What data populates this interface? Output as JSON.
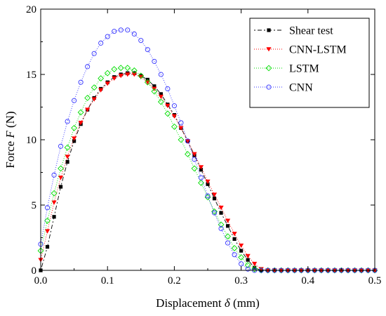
{
  "chart_data": {
    "type": "line",
    "title": "",
    "xlabel_prefix": "Displacement ",
    "xlabel_symbol": "δ",
    "xlabel_suffix": " (mm)",
    "ylabel_prefix": "Force ",
    "ylabel_symbol": "F",
    "ylabel_suffix": " (N)",
    "xlim": [
      0,
      0.5
    ],
    "ylim": [
      0,
      20
    ],
    "xticks": [
      "0.0",
      "0.1",
      "0.2",
      "0.3",
      "0.4",
      "0.5"
    ],
    "yticks": [
      "0",
      "5",
      "10",
      "15",
      "20"
    ],
    "grid": false,
    "legend_position": "top-right",
    "x": [
      0,
      0.01,
      0.02,
      0.03,
      0.04,
      0.05,
      0.06,
      0.07,
      0.08,
      0.09,
      0.1,
      0.11,
      0.12,
      0.13,
      0.14,
      0.15,
      0.16,
      0.17,
      0.18,
      0.19,
      0.2,
      0.21,
      0.22,
      0.23,
      0.24,
      0.25,
      0.26,
      0.27,
      0.28,
      0.29,
      0.3,
      0.31,
      0.32,
      0.33,
      0.34,
      0.35,
      0.36,
      0.37,
      0.38,
      0.39,
      0.4,
      0.41,
      0.42,
      0.43,
      0.44,
      0.45,
      0.46,
      0.47,
      0.48,
      0.49,
      0.5
    ],
    "series": [
      {
        "name": "Shear test",
        "color": "#000000",
        "marker": "square",
        "dash": "2,3,6,3",
        "values": [
          0,
          1.8,
          4.1,
          6.4,
          8.3,
          9.9,
          11.2,
          12.3,
          13.2,
          13.9,
          14.4,
          14.8,
          15.0,
          15.1,
          15.1,
          14.9,
          14.6,
          14.1,
          13.5,
          12.7,
          11.9,
          10.9,
          9.9,
          8.8,
          7.7,
          6.6,
          5.5,
          4.4,
          3.4,
          2.4,
          1.5,
          0.8,
          0.2,
          0,
          0,
          0,
          0,
          0,
          0,
          0,
          0,
          0,
          0,
          0,
          0,
          0,
          0,
          0,
          0,
          0,
          0
        ]
      },
      {
        "name": "CNN-LSTM",
        "color": "#ff0000",
        "marker": "triangle-down",
        "dash": "1,2",
        "values": [
          0.8,
          3.0,
          5.2,
          7.1,
          8.7,
          10.1,
          11.3,
          12.3,
          13.1,
          13.8,
          14.3,
          14.7,
          14.9,
          15.0,
          15.0,
          14.8,
          14.4,
          13.9,
          13.3,
          12.6,
          11.8,
          10.9,
          9.9,
          8.9,
          7.9,
          6.8,
          5.8,
          4.8,
          3.8,
          2.8,
          1.9,
          1.1,
          0.5,
          0.1,
          0,
          0,
          0,
          0,
          0,
          0,
          0,
          0,
          0,
          0,
          0,
          0,
          0,
          0,
          0,
          0,
          0
        ]
      },
      {
        "name": "LSTM",
        "color": "#00dd00",
        "marker": "diamond",
        "dash": "1,2",
        "values": [
          1.5,
          3.8,
          5.9,
          7.8,
          9.4,
          10.9,
          12.1,
          13.2,
          14.0,
          14.7,
          15.1,
          15.4,
          15.5,
          15.5,
          15.3,
          14.9,
          14.4,
          13.7,
          12.9,
          12.0,
          11.0,
          10.0,
          8.9,
          7.8,
          6.7,
          5.6,
          4.5,
          3.5,
          2.6,
          1.7,
          1.0,
          0.4,
          0.1,
          0,
          0,
          0,
          0,
          0,
          0,
          0,
          0,
          0,
          0,
          0,
          0,
          0,
          0,
          0,
          0,
          0,
          0
        ]
      },
      {
        "name": "CNN",
        "color": "#3333ff",
        "marker": "circle",
        "dash": "1,2",
        "values": [
          2.0,
          4.8,
          7.3,
          9.5,
          11.4,
          13.0,
          14.4,
          15.6,
          16.6,
          17.4,
          17.9,
          18.3,
          18.4,
          18.4,
          18.1,
          17.6,
          16.9,
          16.0,
          15.0,
          13.9,
          12.6,
          11.3,
          9.9,
          8.5,
          7.1,
          5.7,
          4.4,
          3.2,
          2.1,
          1.2,
          0.5,
          0.1,
          0,
          0,
          0,
          0,
          0,
          0,
          0,
          0,
          0,
          0,
          0,
          0,
          0,
          0,
          0,
          0,
          0,
          0,
          0
        ]
      }
    ]
  }
}
